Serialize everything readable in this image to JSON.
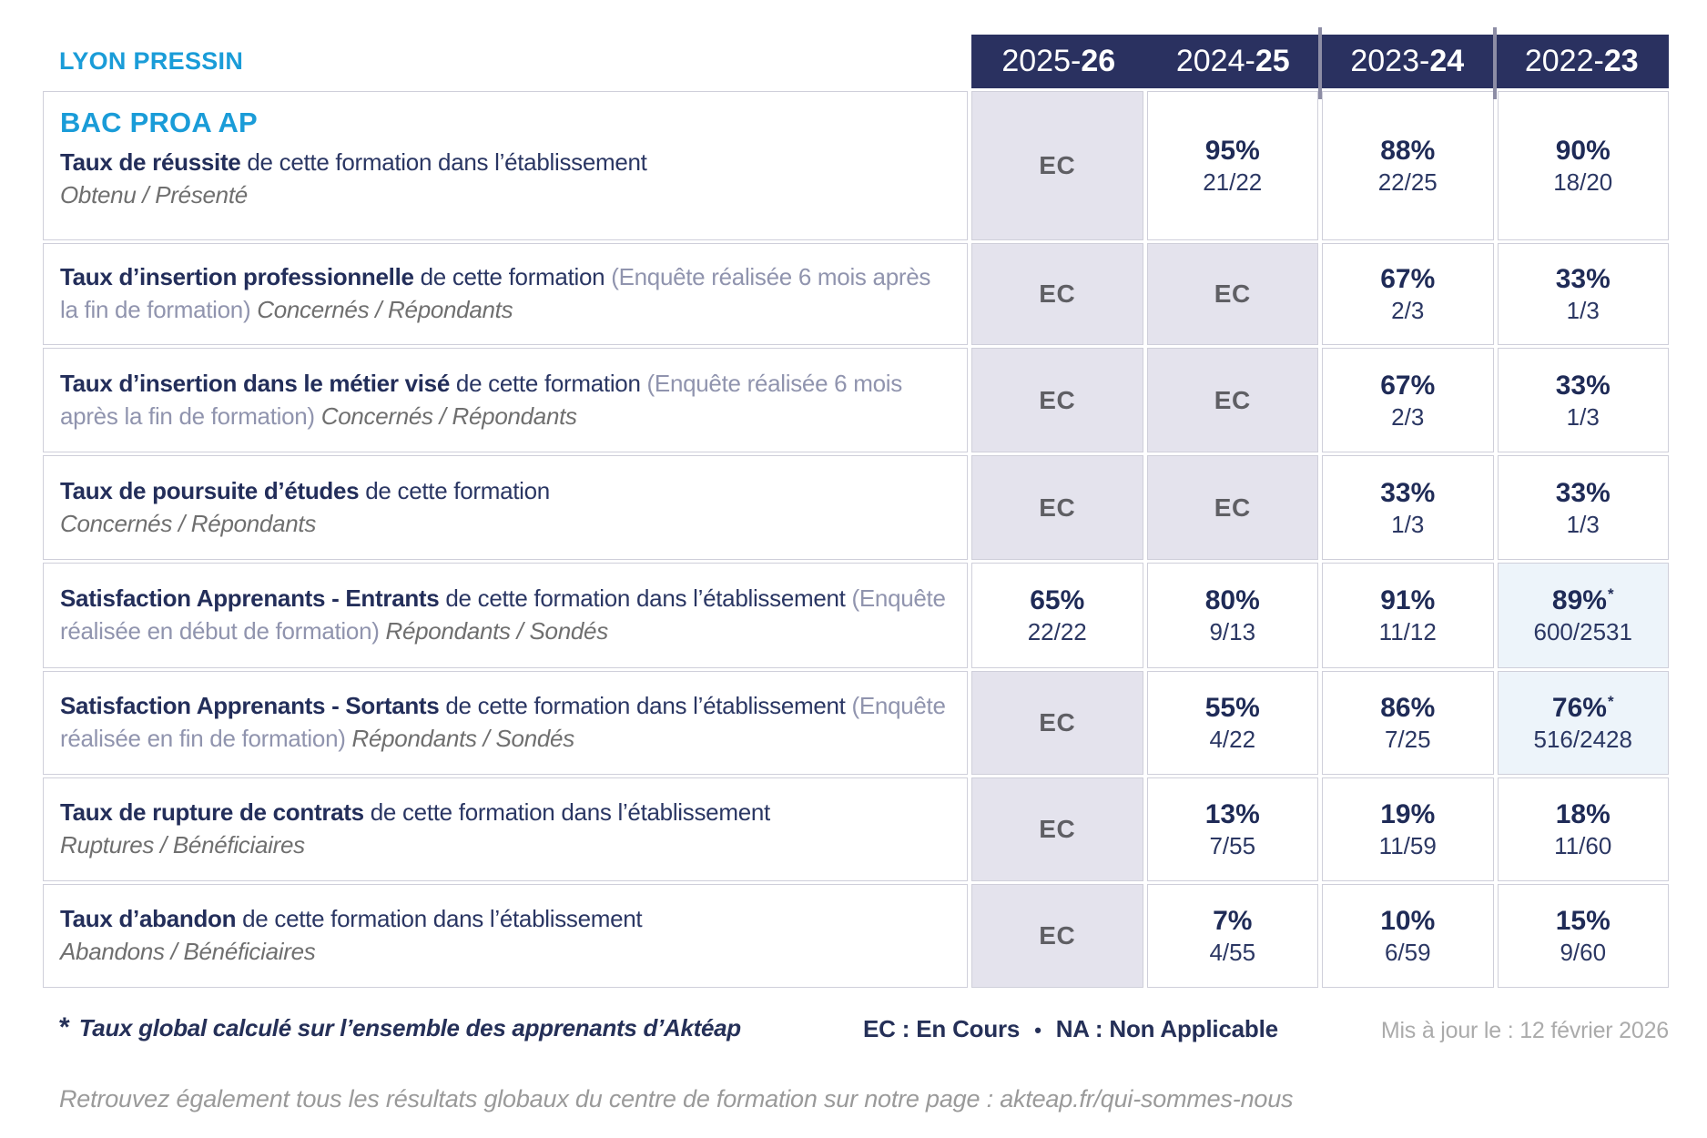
{
  "header": {
    "site": "LYON PRESSIN",
    "columns": [
      {
        "prefix": "2025-",
        "suffix": "26"
      },
      {
        "prefix": "2024-",
        "suffix": "25"
      },
      {
        "prefix": "2023-",
        "suffix": "24"
      },
      {
        "prefix": "2022-",
        "suffix": "23"
      }
    ]
  },
  "program": "BAC PROA AP",
  "rows": [
    {
      "title": "Taux de réussite",
      "desc": " de cette formation dans l’établissement",
      "sub": "Obtenu / Présenté",
      "values": [
        {
          "text": "EC"
        },
        {
          "pct": "95%",
          "frac": "21/22"
        },
        {
          "pct": "88%",
          "frac": "22/25"
        },
        {
          "pct": "90%",
          "frac": "18/20"
        }
      ]
    },
    {
      "title": "Taux d’insertion professionnelle",
      "desc": " de cette formation ",
      "note": "(Enquête réalisée 6 mois après la fin de formation) ",
      "sub": "Concernés / Répondants",
      "values": [
        {
          "text": "EC"
        },
        {
          "text": "EC"
        },
        {
          "pct": "67%",
          "frac": "2/3"
        },
        {
          "pct": "33%",
          "frac": "1/3"
        }
      ]
    },
    {
      "title": "Taux d’insertion dans le métier visé",
      "desc": " de cette formation ",
      "note": "(Enquête réalisée 6 mois après la fin de formation) ",
      "sub": "Concernés / Répondants",
      "values": [
        {
          "text": "EC"
        },
        {
          "text": "EC"
        },
        {
          "pct": "67%",
          "frac": "2/3"
        },
        {
          "pct": "33%",
          "frac": "1/3"
        }
      ]
    },
    {
      "title": "Taux de poursuite d’études",
      "desc": " de cette formation",
      "sub": "Concernés / Répondants",
      "values": [
        {
          "text": "EC"
        },
        {
          "text": "EC"
        },
        {
          "pct": "33%",
          "frac": "1/3"
        },
        {
          "pct": "33%",
          "frac": "1/3"
        }
      ]
    },
    {
      "title": "Satisfaction Apprenants - Entrants",
      "desc": " de cette formation dans l’établissement ",
      "note": "(Enquête réalisée en début de formation) ",
      "sub": "Répondants / Sondés",
      "values": [
        {
          "pct": "65%",
          "frac": "22/22"
        },
        {
          "pct": "80%",
          "frac": "9/13"
        },
        {
          "pct": "91%",
          "frac": "11/12"
        },
        {
          "pct": "89%",
          "star": "*",
          "frac": "600/2531"
        }
      ]
    },
    {
      "title": "Satisfaction Apprenants - Sortants",
      "desc": " de cette formation dans l’établissement ",
      "note": "(Enquête réalisée en fin de formation) ",
      "sub": "Répondants / Sondés",
      "values": [
        {
          "text": "EC"
        },
        {
          "pct": "55%",
          "frac": "4/22"
        },
        {
          "pct": "86%",
          "frac": "7/25"
        },
        {
          "pct": "76%",
          "star": "*",
          "frac": "516/2428"
        }
      ]
    },
    {
      "title": "Taux de rupture de contrats",
      "desc": " de cette formation dans l’établissement",
      "sub": "Ruptures / Bénéficiaires",
      "values": [
        {
          "text": "EC"
        },
        {
          "pct": "13%",
          "frac": "7/55"
        },
        {
          "pct": "19%",
          "frac": "11/59"
        },
        {
          "pct": "18%",
          "frac": "11/60"
        }
      ]
    },
    {
      "title": "Taux d’abandon",
      "desc": " de cette formation dans l’établissement",
      "sub": "Abandons / Bénéficiaires",
      "values": [
        {
          "text": "EC"
        },
        {
          "pct": "7%",
          "frac": "4/55"
        },
        {
          "pct": "10%",
          "frac": "6/59"
        },
        {
          "pct": "15%",
          "frac": "9/60"
        }
      ]
    }
  ],
  "footnote": {
    "star": "*",
    "text": "Taux global calculé sur l’ensemble des apprenants d’Aktéap",
    "legend_ec": "EC : En Cours",
    "legend_sep": "•",
    "legend_na": "NA : Non Applicable",
    "updated": "Mis à jour le : 12 février 2026"
  },
  "bottom_note": "Retrouvez également tous les résultats globaux du centre de formation sur notre page : akteap.fr/qui-sommes-nous",
  "colors": {
    "header_navy": "#2a3160",
    "accent_cyan": "#1a9cd8",
    "text_navy": "#253058",
    "ec_background": "#e4e3ed",
    "starred_background": "#edf4fa",
    "note_gray": "#9094ae",
    "sub_gray": "#6f6f6f"
  }
}
